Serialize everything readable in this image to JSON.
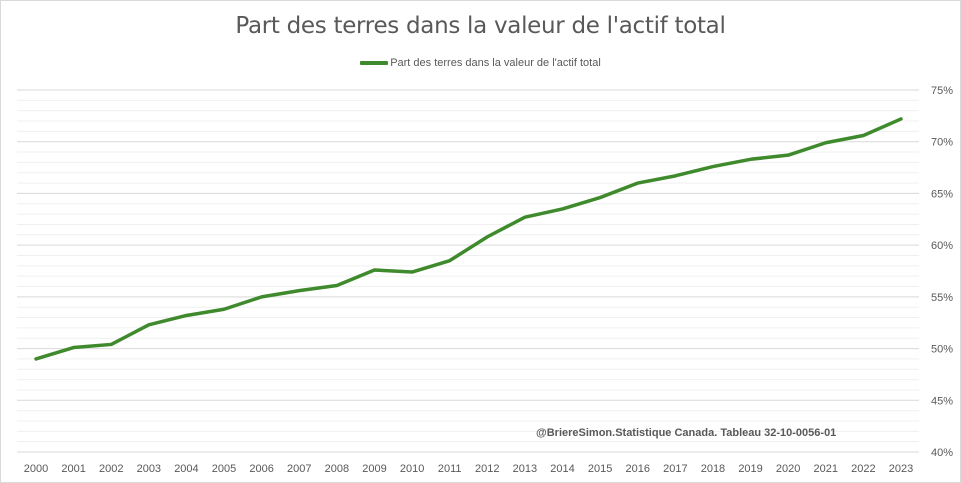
{
  "chart_data": {
    "type": "line",
    "title": "Part des terres dans la valeur de l'actif total",
    "xlabel": "",
    "ylabel": "",
    "legend_position": "top-center",
    "grid": true,
    "x": [
      "2000",
      "2001",
      "2002",
      "2003",
      "2004",
      "2005",
      "2006",
      "2007",
      "2008",
      "2009",
      "2010",
      "2011",
      "2012",
      "2013",
      "2014",
      "2015",
      "2016",
      "2017",
      "2018",
      "2019",
      "2020",
      "2021",
      "2022",
      "2023"
    ],
    "series": [
      {
        "name": "Part des terres dans la valeur de l'actif total",
        "color": "#3f8a2c",
        "values": [
          49.0,
          50.1,
          50.4,
          52.3,
          53.2,
          53.8,
          55.0,
          55.6,
          56.1,
          57.6,
          57.4,
          58.5,
          60.8,
          62.7,
          63.5,
          64.6,
          66.0,
          66.7,
          67.6,
          68.3,
          68.7,
          69.9,
          70.6,
          72.2
        ]
      }
    ],
    "ylim": [
      40,
      75
    ],
    "yticks": [
      "40%",
      "45%",
      "50%",
      "55%",
      "60%",
      "65%",
      "70%",
      "75%"
    ],
    "ytick_values": [
      40,
      45,
      50,
      55,
      60,
      65,
      70,
      75
    ],
    "annotation": "@BriereSimon.Statistique Canada. Tableau 32-10-0056-01"
  }
}
